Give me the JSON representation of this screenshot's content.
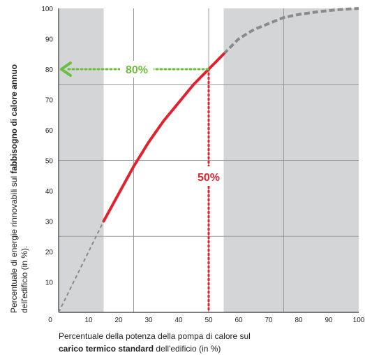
{
  "chart_data": {
    "type": "line",
    "x": [
      0,
      5,
      10,
      15,
      20,
      25,
      30,
      35,
      40,
      45,
      50,
      55,
      60,
      65,
      70,
      75,
      80,
      85,
      90,
      95,
      100
    ],
    "series": [
      {
        "values": [
          0,
          10,
          20,
          30,
          39,
          48,
          56,
          63,
          69,
          75,
          80,
          85,
          90,
          93,
          95,
          97,
          98,
          98.7,
          99.3,
          99.7,
          100
        ]
      }
    ],
    "highlighted_range": [
      15,
      55
    ],
    "shaded_ranges": [
      [
        0,
        15
      ],
      [
        55,
        100
      ]
    ],
    "xlim": [
      0,
      100
    ],
    "ylim": [
      0,
      100
    ],
    "x_ticks": [
      "0",
      "10",
      "20",
      "30",
      "40",
      "50",
      "60",
      "70",
      "80",
      "90",
      "100"
    ],
    "y_ticks": [
      "10",
      "20",
      "30",
      "40",
      "50",
      "60",
      "70",
      "80",
      "90",
      "100"
    ],
    "grid": true,
    "annotation_x": {
      "label": "50%",
      "value": 50
    },
    "annotation_y": {
      "label": "80%",
      "value": 80
    },
    "ylabel": {
      "part1": "Percentuale di energie rinnovabili sul ",
      "part2_bold": "fabbisogno di calore annuo",
      "line2": "dell'edificio (in %)."
    },
    "xlabel": {
      "line1": "Percentuale della potenza della pompa di calore sul",
      "line2_bold": "carico termico standard",
      "line2_rest": " dell'edificio (in %)"
    }
  },
  "colors": {
    "shade": "#d4d5d7",
    "grid": "#9a9a9a",
    "curve_highlight": "#e0232f",
    "curve_dashed": "#8a8a8a",
    "annotation_x": "#e0232f",
    "annotation_y": "#6cbf3e"
  }
}
